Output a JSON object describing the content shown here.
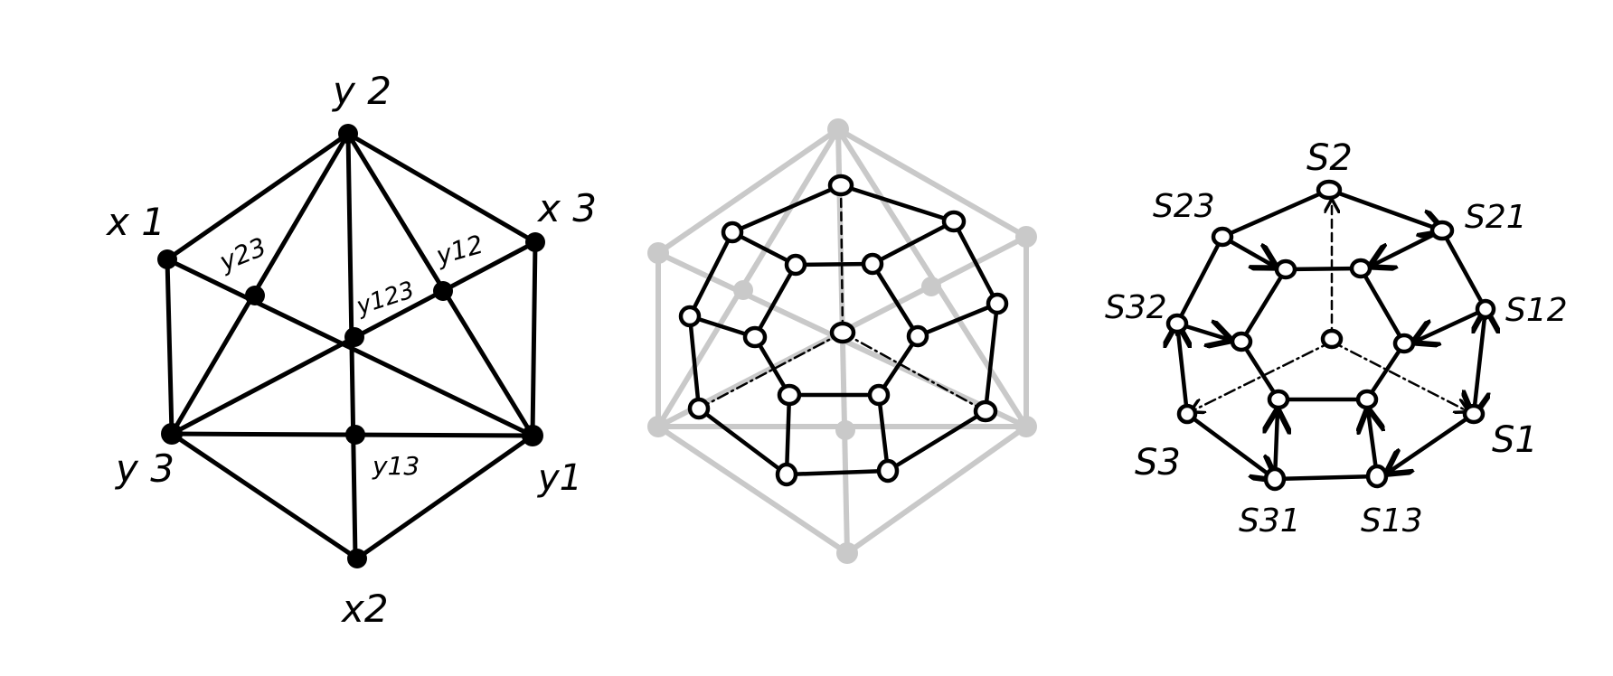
{
  "panel_left": {
    "labels": {
      "y2": "y 2",
      "x1": "x 1",
      "x3": "x 3",
      "y23": "y23",
      "y12": "y12",
      "y123": "y123",
      "y3": "y 3",
      "y13": "y13",
      "y1": "y1",
      "x2": "x2"
    }
  },
  "panel_right": {
    "labels": {
      "S2": "S2",
      "S23": "S23",
      "S21": "S21",
      "S32": "S32",
      "S12": "S12",
      "S3": "S3",
      "S1": "S1",
      "S31": "S31",
      "S13": "S13"
    }
  },
  "colors": {
    "ink": "#000000",
    "ghost": "#c9c9c9",
    "background": "#ffffff"
  }
}
